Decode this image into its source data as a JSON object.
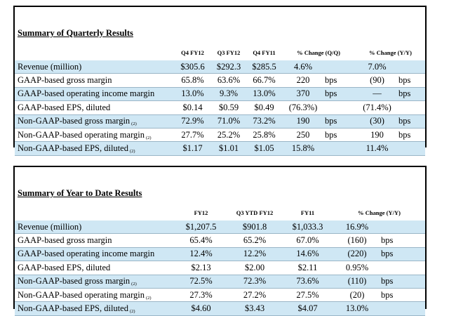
{
  "quarterly": {
    "title": "Summary of Quarterly Results",
    "headers": [
      "Q4 FY12",
      "Q3 FY12",
      "Q4 FY11",
      "% Change (Q/Q)",
      "% Change (Y/Y)"
    ],
    "rows": [
      {
        "label": "Revenue (million)",
        "note": "",
        "values": [
          "$305.6",
          "$292.3",
          "$285.5",
          "4.6%",
          "",
          "7.0%",
          ""
        ],
        "shaded": true
      },
      {
        "label": "GAAP-based gross margin",
        "note": "",
        "values": [
          "65.8%",
          "63.6%",
          "66.7%",
          "220",
          "bps",
          "(90)",
          "bps"
        ],
        "shaded": false
      },
      {
        "label": "GAAP-based operating income margin",
        "note": "",
        "values": [
          "13.0%",
          "9.3%",
          "13.0%",
          "370",
          "bps",
          "—",
          "bps"
        ],
        "shaded": true
      },
      {
        "label": "GAAP-based EPS, diluted",
        "note": "",
        "values": [
          "$0.14",
          "$0.59",
          "$0.49",
          "(76.3%)",
          "",
          "(71.4%)",
          ""
        ],
        "shaded": false
      },
      {
        "label": "Non-GAAP-based gross margin",
        "note": "(2)",
        "values": [
          "72.9%",
          "71.0%",
          "73.2%",
          "190",
          "bps",
          "(30)",
          "bps"
        ],
        "shaded": true
      },
      {
        "label": "Non-GAAP-based operating margin",
        "note": "(2)",
        "values": [
          "27.7%",
          "25.2%",
          "25.8%",
          "250",
          "bps",
          "190",
          "bps"
        ],
        "shaded": false
      },
      {
        "label": "Non-GAAP-based EPS, diluted",
        "note": "(2)",
        "values": [
          "$1.17",
          "$1.01",
          "$1.05",
          "15.8%",
          "",
          "11.4%",
          ""
        ],
        "shaded": true
      }
    ]
  },
  "ytd": {
    "title": "Summary of Year to Date Results",
    "headers": [
      "FY12",
      "Q3 YTD FY12",
      "FY11",
      "% Change (Y/Y)"
    ],
    "rows": [
      {
        "label": "Revenue (million)",
        "note": "",
        "values": [
          "$1,207.5",
          "$901.8",
          "$1,033.3",
          "16.9%",
          ""
        ],
        "shaded": true
      },
      {
        "label": "GAAP-based gross margin",
        "note": "",
        "values": [
          "65.4%",
          "65.2%",
          "67.0%",
          "(160)",
          "bps"
        ],
        "shaded": false
      },
      {
        "label": "GAAP-based operating income margin",
        "note": "",
        "values": [
          "12.4%",
          "12.2%",
          "14.6%",
          "(220)",
          "bps"
        ],
        "shaded": true
      },
      {
        "label": "GAAP-based EPS, diluted",
        "note": "",
        "values": [
          "$2.13",
          "$2.00",
          "$2.11",
          "0.95%",
          ""
        ],
        "shaded": false
      },
      {
        "label": "Non-GAAP-based gross margin",
        "note": "(2)",
        "values": [
          "72.5%",
          "72.3%",
          "73.6%",
          "(110)",
          "bps"
        ],
        "shaded": true
      },
      {
        "label": "Non-GAAP-based operating margin",
        "note": "(2)",
        "values": [
          "27.3%",
          "27.2%",
          "27.5%",
          "(20)",
          "bps"
        ],
        "shaded": false
      },
      {
        "label": "Non-GAAP-based EPS, diluted",
        "note": "(2)",
        "values": [
          "$4.60",
          "$3.43",
          "$4.07",
          "13.0%",
          ""
        ],
        "shaded": true
      }
    ]
  },
  "colors": {
    "row_shade": "#cfe7f4",
    "rule": "#9ab6c7"
  }
}
